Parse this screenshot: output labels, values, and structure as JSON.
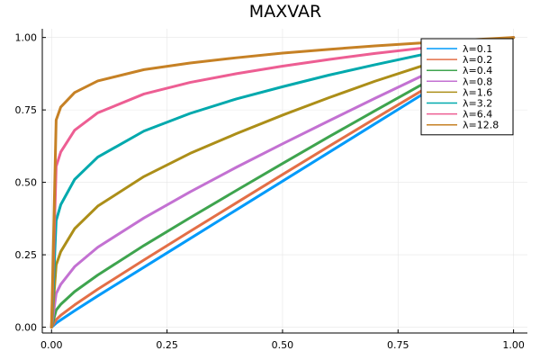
{
  "chart_data": {
    "type": "line",
    "title": "MAXVAR",
    "xlabel": "",
    "ylabel": "",
    "xlim": [
      -0.02,
      1.03
    ],
    "ylim": [
      -0.02,
      1.03
    ],
    "xticks": [
      0.0,
      0.25,
      0.5,
      0.75,
      1.0
    ],
    "yticks": [
      0.0,
      0.25,
      0.5,
      0.75,
      1.0
    ],
    "xtick_labels": [
      "0.00",
      "0.25",
      "0.50",
      "0.75",
      "1.00"
    ],
    "ytick_labels": [
      "0.00",
      "0.25",
      "0.50",
      "0.75",
      "1.00"
    ],
    "grid": true,
    "legend_position": "top-right",
    "x": [
      0.0,
      0.01,
      0.02,
      0.05,
      0.1,
      0.2,
      0.3,
      0.4,
      0.5,
      0.6,
      0.7,
      0.8,
      0.9,
      1.0
    ],
    "series": [
      {
        "name": "λ=0.1",
        "color": "#009AFA",
        "values": [
          0.0,
          0.014,
          0.025,
          0.057,
          0.108,
          0.207,
          0.306,
          0.405,
          0.504,
          0.603,
          0.702,
          0.801,
          0.901,
          1.0
        ]
      },
      {
        "name": "λ=0.2",
        "color": "#E36F47",
        "values": [
          0.0,
          0.026,
          0.041,
          0.077,
          0.131,
          0.232,
          0.331,
          0.429,
          0.527,
          0.624,
          0.72,
          0.815,
          0.908,
          1.0
        ]
      },
      {
        "name": "λ=0.4",
        "color": "#3EA44E",
        "values": [
          0.0,
          0.059,
          0.079,
          0.123,
          0.18,
          0.282,
          0.378,
          0.472,
          0.565,
          0.657,
          0.747,
          0.836,
          0.921,
          1.0
        ]
      },
      {
        "name": "λ=0.8",
        "color": "#C371D2",
        "values": [
          0.0,
          0.116,
          0.148,
          0.209,
          0.276,
          0.377,
          0.467,
          0.552,
          0.633,
          0.712,
          0.79,
          0.866,
          0.937,
          1.0
        ]
      },
      {
        "name": "λ=1.6",
        "color": "#AC8E18",
        "values": [
          0.0,
          0.215,
          0.261,
          0.34,
          0.418,
          0.52,
          0.6,
          0.668,
          0.732,
          0.792,
          0.849,
          0.901,
          0.953,
          1.0
        ]
      },
      {
        "name": "λ=3.2",
        "color": "#00A9AD",
        "values": [
          0.0,
          0.368,
          0.423,
          0.51,
          0.587,
          0.677,
          0.738,
          0.788,
          0.83,
          0.87,
          0.906,
          0.94,
          0.971,
          1.0
        ]
      },
      {
        "name": "λ=6.4",
        "color": "#ED5E93",
        "values": [
          0.0,
          0.555,
          0.605,
          0.68,
          0.74,
          0.805,
          0.845,
          0.875,
          0.901,
          0.924,
          0.945,
          0.963,
          0.982,
          1.0
        ]
      },
      {
        "name": "λ=12.8",
        "color": "#C68125",
        "values": [
          0.0,
          0.715,
          0.76,
          0.81,
          0.85,
          0.889,
          0.912,
          0.93,
          0.946,
          0.959,
          0.971,
          0.981,
          0.991,
          1.0
        ]
      }
    ]
  }
}
